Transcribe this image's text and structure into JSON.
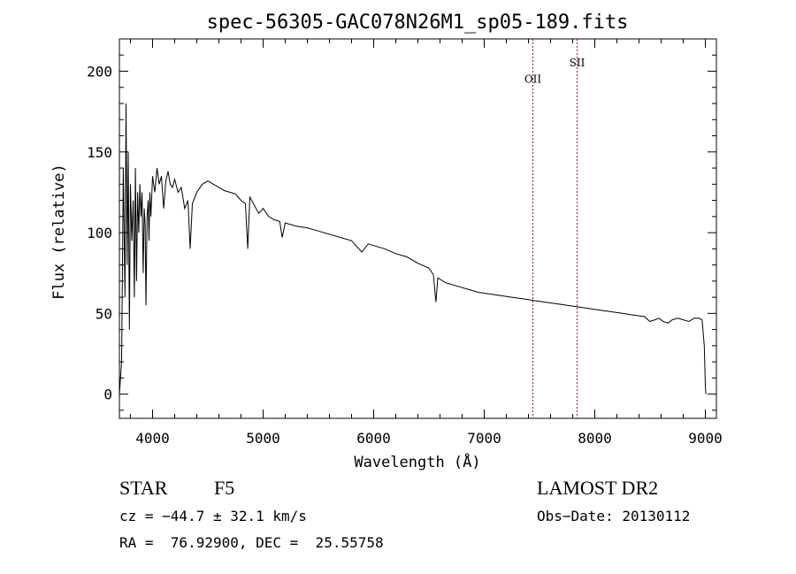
{
  "chart_data": {
    "type": "line",
    "title": "spec-56305-GAC078N26M1_sp05-189.fits",
    "xlabel": "Wavelength (Å)",
    "ylabel": "Flux (relative)",
    "xlim": [
      3700,
      9100
    ],
    "ylim": [
      -15,
      220
    ],
    "xticks": [
      4000,
      5000,
      6000,
      7000,
      8000,
      9000
    ],
    "yticks": [
      0,
      50,
      100,
      150,
      200
    ],
    "grid": false,
    "series": [
      {
        "x": [
          3700,
          3720,
          3735,
          3750,
          3760,
          3770,
          3780,
          3790,
          3800,
          3812,
          3825,
          3835,
          3845,
          3855,
          3865,
          3875,
          3885,
          3895,
          3905,
          3915,
          3925,
          3933,
          3940,
          3950,
          3960,
          3968,
          3975,
          3985,
          4000,
          4020,
          4040,
          4060,
          4080,
          4101,
          4120,
          4140,
          4160,
          4180,
          4200,
          4230,
          4260,
          4290,
          4320,
          4340,
          4360,
          4400,
          4450,
          4500,
          4550,
          4600,
          4650,
          4700,
          4750,
          4800,
          4840,
          4861,
          4880,
          4920,
          4960,
          5000,
          5050,
          5100,
          5150,
          5172,
          5200,
          5250,
          5300,
          5400,
          5500,
          5600,
          5700,
          5800,
          5893,
          5950,
          6000,
          6100,
          6200,
          6300,
          6400,
          6500,
          6540,
          6563,
          6580,
          6650,
          6750,
          6850,
          6950,
          7050,
          7150,
          7250,
          7350,
          7450,
          7550,
          7650,
          7750,
          7850,
          7950,
          8050,
          8150,
          8250,
          8350,
          8450,
          8498,
          8542,
          8580,
          8620,
          8662,
          8700,
          8750,
          8800,
          8850,
          8900,
          8940,
          8970,
          8990,
          9000,
          9005
        ],
        "y": [
          0,
          20,
          140,
          60,
          180,
          80,
          150,
          40,
          130,
          95,
          120,
          60,
          140,
          70,
          125,
          100,
          130,
          110,
          125,
          75,
          115,
          105,
          55,
          110,
          120,
          95,
          125,
          110,
          135,
          125,
          140,
          130,
          135,
          115,
          132,
          138,
          130,
          128,
          133,
          125,
          128,
          115,
          120,
          90,
          118,
          125,
          130,
          132,
          130,
          128,
          126,
          125,
          124,
          120,
          118,
          90,
          122,
          117,
          112,
          115,
          110,
          108,
          107,
          97,
          106,
          105,
          104,
          103,
          101,
          99,
          97,
          95,
          88,
          93,
          92,
          90,
          87,
          85,
          81,
          78,
          74,
          57,
          72,
          69,
          67,
          65,
          63,
          62,
          61,
          60,
          59,
          58,
          57,
          56,
          55,
          54,
          53,
          52,
          51,
          50,
          49,
          48,
          45,
          46,
          47,
          45,
          44,
          46,
          47,
          46,
          45,
          47,
          47,
          46,
          30,
          5,
          0
        ]
      }
    ],
    "annotations": [
      {
        "label": "OII",
        "x": 7440,
        "label_y": 193
      },
      {
        "label": "SII",
        "x": 7840,
        "label_y": 203
      }
    ]
  },
  "info": {
    "object_class": "STAR",
    "subclass": "F5",
    "survey": "LAMOST DR2",
    "redshift": "cz = −44.7 ± 32.1 km/s",
    "obs_date": "Obs−Date: 20130112",
    "coords": "RA =  76.92900, DEC =  25.55758"
  },
  "colors": {
    "line": "#000000",
    "marker_line": "#9b1c1c",
    "axes": "#000000"
  }
}
